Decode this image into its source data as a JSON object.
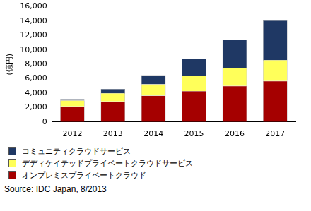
{
  "chart_data": {
    "type": "bar",
    "stacked": true,
    "grid": false,
    "legend": "bottom",
    "y_label": "(億円)",
    "source": "Source: IDC Japan, 8/2013",
    "categories": [
      "2012",
      "2013",
      "2014",
      "2015",
      "2016",
      "2017"
    ],
    "series": [
      {
        "name": "オンプレミスプライベートクラウド",
        "color": "#a50000",
        "values": [
          2150,
          2850,
          3650,
          4300,
          5000,
          5700
        ]
      },
      {
        "name": "デディケイテッドプライベートクラウドサービス",
        "color": "#ffff5a",
        "values": [
          850,
          1150,
          1600,
          2150,
          2500,
          2900
        ]
      },
      {
        "name": "コミュニティクラウドサービス",
        "color": "#1f3864",
        "values": [
          200,
          600,
          1250,
          2350,
          3900,
          5500
        ]
      }
    ],
    "ylim": [
      0,
      16000
    ],
    "yticks": [
      0,
      {
        "value": 2000,
        "label": "2,000"
      },
      {
        "value": 4000,
        "label": "4,000"
      },
      {
        "value": 6000,
        "label": "6,000"
      },
      {
        "value": 8000,
        "label": "8,000"
      },
      {
        "value": 10000,
        "label": "10,000"
      },
      {
        "value": 12000,
        "label": "12,000"
      },
      {
        "value": 14000,
        "label": "14,000"
      },
      {
        "value": 16000,
        "label": "16,000"
      }
    ]
  }
}
